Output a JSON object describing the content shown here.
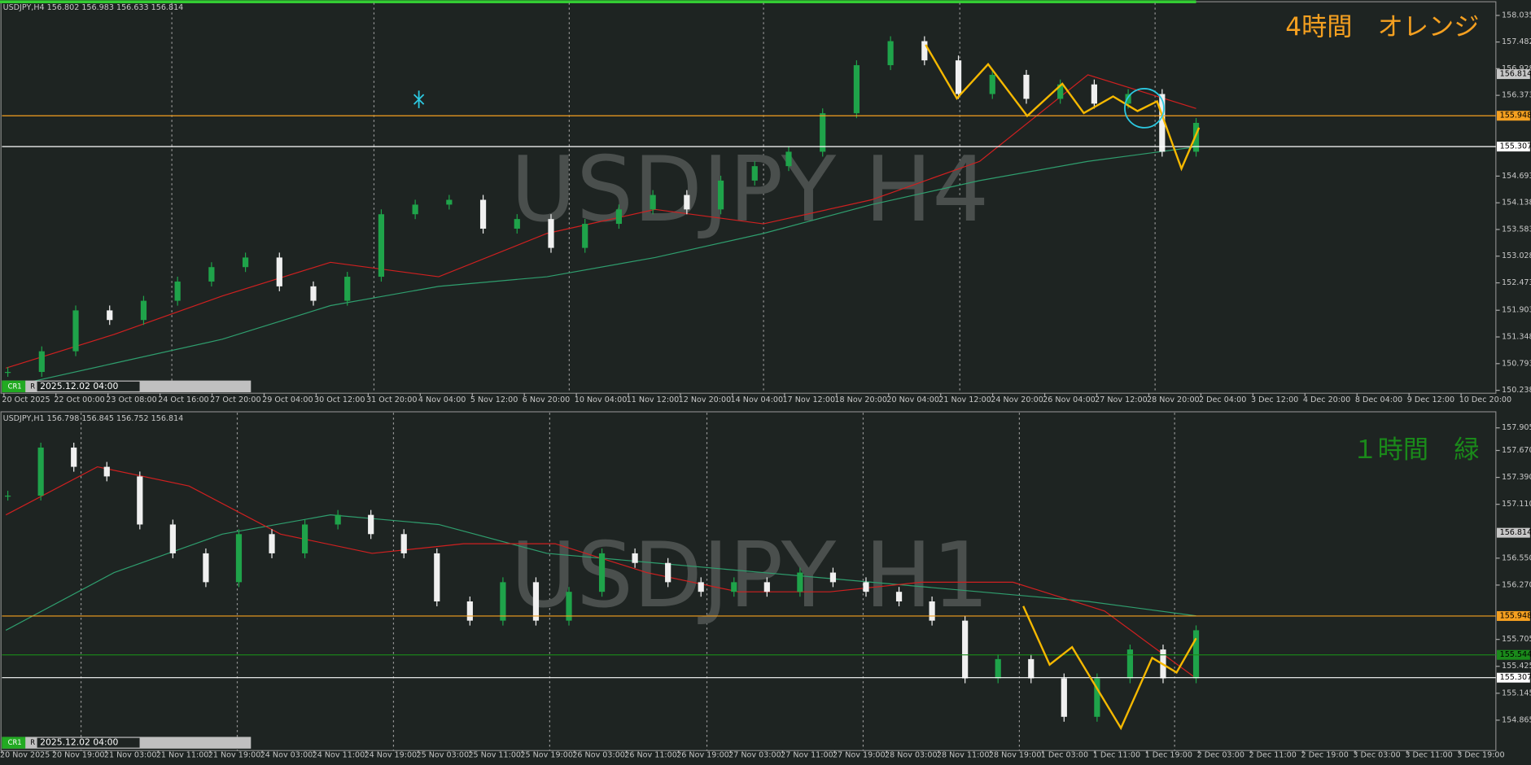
{
  "panels": [
    {
      "header": "USDJPY,H4  156.802 156.983 156.633 156.814",
      "watermark": "USDJPY H4",
      "annotation": "4時間　オレンジ",
      "annotation_color": "#f5a020",
      "ylim": [
        150.177,
        158.299
      ],
      "yticks": [
        158.035,
        157.482,
        156.928,
        156.373,
        154.693,
        154.138,
        153.583,
        153.028,
        152.473,
        151.903,
        151.348,
        150.793,
        150.238
      ],
      "price": 156.814,
      "hlines": [
        {
          "value": 155.948,
          "color": "#f5a020"
        },
        {
          "value": 155.307,
          "color": "#ffffff"
        }
      ],
      "time_labels": [
        "20 Oct 2025",
        "22 Oct 00:00",
        "23 Oct 08:00",
        "24 Oct 16:00",
        "27 Oct 20:00",
        "29 Oct 04:00",
        "30 Oct 12:00",
        "31 Oct 20:00",
        "4 Nov 04:00",
        "5 Nov 12:00",
        "6 Nov 20:00",
        "10 Nov 04:00",
        "11 Nov 12:00",
        "12 Nov 20:00",
        "14 Nov 04:00",
        "17 Nov 12:00",
        "18 Nov 20:00",
        "20 Nov 04:00",
        "21 Nov 12:00",
        "24 Nov 20:00",
        "26 Nov 04:00",
        "27 Nov 12:00",
        "28 Nov 20:00",
        "2 Dec 04:00",
        "3 Dec 12:00",
        "4 Dec 20:00",
        "8 Dec 04:00",
        "9 Dec 12:00",
        "10 Dec 20:00"
      ],
      "closes": [
        150.62,
        151.05,
        151.9,
        151.7,
        152.1,
        152.5,
        152.8,
        153.0,
        152.4,
        152.1,
        152.6,
        153.9,
        154.1,
        154.2,
        153.6,
        153.8,
        153.2,
        153.7,
        154.0,
        154.3,
        154.0,
        154.6,
        154.9,
        155.2,
        156.0,
        157.0,
        157.5,
        157.1,
        156.4,
        156.8,
        156.3,
        156.6,
        156.2,
        156.4,
        155.2,
        155.8
      ],
      "ma_red": [
        150.7,
        151.4,
        152.2,
        152.9,
        152.6,
        153.5,
        154.0,
        153.7,
        154.2,
        155.0,
        156.8,
        156.1
      ],
      "ma_green": [
        150.3,
        150.8,
        151.3,
        152.0,
        152.4,
        152.6,
        153.0,
        153.5,
        154.1,
        154.6,
        155.0,
        155.3
      ]
    },
    {
      "header": "USDJPY,H1  156.798 156.845 156.752 156.814",
      "watermark": "USDJPY H1",
      "annotation": "１時間　緑",
      "annotation_color": "#1a8a1a",
      "ylim": [
        154.549,
        158.062
      ],
      "yticks": [
        157.905,
        {
          "value": 157.67,
          "label": "157.670"
        },
        {
          "value": 157.39,
          "label": "157.390"
        },
        {
          "value": 157.11,
          "label": "157.110"
        },
        {
          "value": 156.55,
          "label": "156.550"
        },
        {
          "value": 156.27,
          "label": "156.270"
        },
        155.705,
        155.425,
        155.145,
        154.865
      ],
      "price": 156.814,
      "hlines": [
        {
          "value": 155.948,
          "color": "#f5a020"
        },
        {
          "value": 155.544,
          "color": "#1a8a1a"
        },
        {
          "value": 155.307,
          "color": "#ffffff"
        }
      ],
      "time_labels": [
        "20 Nov 2025",
        "20 Nov 19:00",
        "21 Nov 03:00",
        "21 Nov 11:00",
        "21 Nov 19:00",
        "24 Nov 03:00",
        "24 Nov 11:00",
        "24 Nov 19:00",
        "25 Nov 03:00",
        "25 Nov 11:00",
        "25 Nov 19:00",
        "26 Nov 03:00",
        "26 Nov 11:00",
        "26 Nov 19:00",
        "27 Nov 03:00",
        "27 Nov 11:00",
        "27 Nov 19:00",
        "28 Nov 03:00",
        "28 Nov 11:00",
        "28 Nov 19:00",
        "1 Dec 03:00",
        "1 Dec 11:00",
        "1 Dec 19:00",
        "2 Dec 03:00",
        "2 Dec 11:00",
        "2 Dec 19:00",
        "3 Dec 03:00",
        "3 Dec 11:00",
        "3 Dec 19:00"
      ],
      "closes": [
        157.2,
        157.7,
        157.5,
        157.4,
        156.9,
        156.6,
        156.3,
        156.8,
        156.6,
        156.9,
        157.0,
        156.8,
        156.6,
        156.1,
        155.9,
        156.3,
        155.9,
        156.2,
        156.6,
        156.5,
        156.3,
        156.2,
        156.3,
        156.2,
        156.4,
        156.3,
        156.2,
        156.1,
        155.9,
        155.3,
        155.5,
        155.3,
        154.9,
        155.3,
        155.6,
        155.3,
        155.8
      ],
      "ma_red": [
        157.0,
        157.5,
        157.3,
        156.8,
        156.6,
        156.7,
        156.7,
        156.4,
        156.2,
        156.2,
        156.3,
        156.3,
        156.0,
        155.3
      ],
      "ma_green": [
        155.8,
        156.4,
        156.8,
        157.0,
        156.9,
        156.6,
        156.5,
        156.4,
        156.3,
        156.2,
        156.1,
        155.95
      ]
    }
  ],
  "toolbar": {
    "profile": "CR1",
    "mode": "R",
    "date": "2025.12.02 04:00"
  }
}
